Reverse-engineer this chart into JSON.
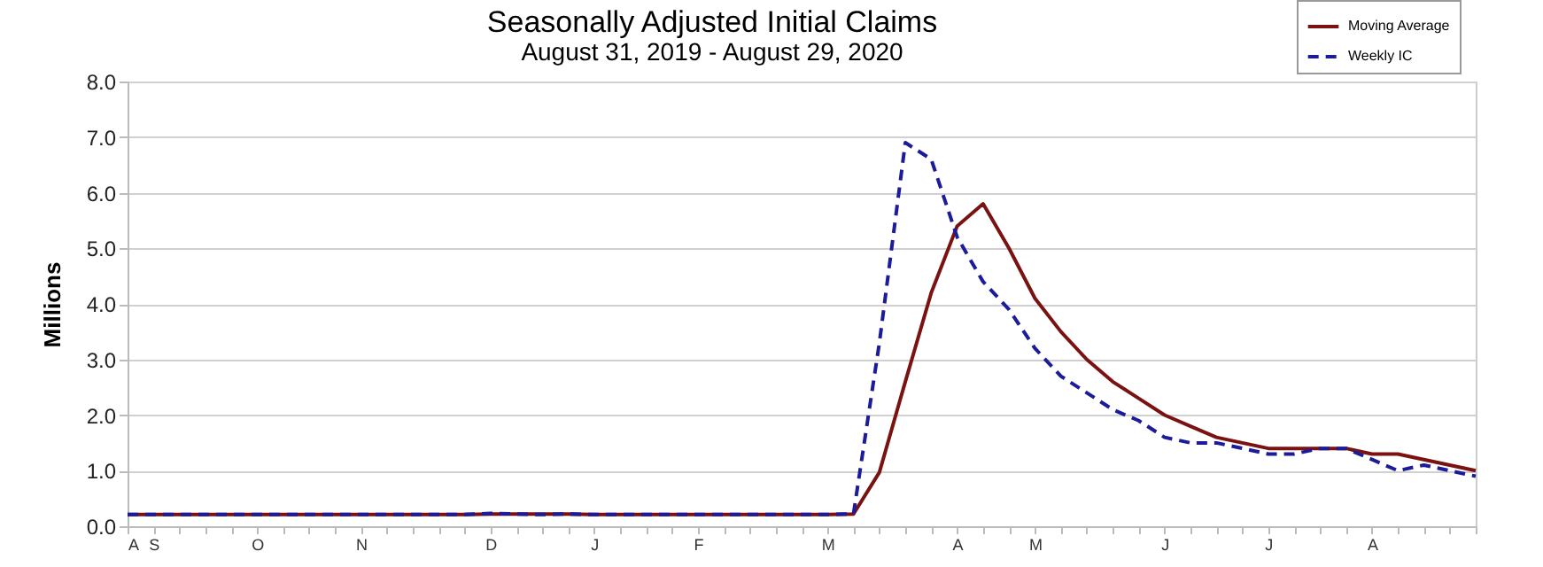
{
  "chart_data": {
    "type": "line",
    "title": "Seasonally Adjusted Initial Claims",
    "subtitle": "August 31, 2019 - August 29, 2020",
    "ylabel": "Millions",
    "categories": [
      "A",
      "S",
      null,
      null,
      null,
      "O",
      null,
      null,
      null,
      "N",
      null,
      null,
      null,
      null,
      "D",
      null,
      null,
      null,
      "J",
      null,
      null,
      null,
      "F",
      null,
      null,
      null,
      null,
      "M",
      null,
      null,
      null,
      null,
      "A",
      null,
      null,
      "M",
      null,
      null,
      null,
      null,
      "J",
      null,
      null,
      null,
      "J",
      null,
      null,
      null,
      "A",
      null,
      null,
      null,
      null
    ],
    "series": [
      {
        "name": "Moving Average",
        "color": "#7a1212",
        "line_style": "solid",
        "values": [
          0.21,
          0.21,
          0.21,
          0.21,
          0.21,
          0.21,
          0.21,
          0.21,
          0.21,
          0.21,
          0.21,
          0.21,
          0.21,
          0.21,
          0.22,
          0.22,
          0.22,
          0.22,
          0.21,
          0.21,
          0.21,
          0.21,
          0.21,
          0.21,
          0.21,
          0.21,
          0.21,
          0.21,
          0.22,
          0.97,
          2.6,
          4.2,
          5.4,
          5.8,
          5.0,
          4.1,
          3.5,
          3.0,
          2.6,
          2.3,
          2.0,
          1.8,
          1.6,
          1.5,
          1.4,
          1.4,
          1.4,
          1.4,
          1.3,
          1.3,
          1.2,
          1.1,
          1.0
        ]
      },
      {
        "name": "Weekly IC",
        "color": "#1c1c9a",
        "line_style": "dashed",
        "values": [
          0.21,
          0.21,
          0.21,
          0.21,
          0.21,
          0.21,
          0.21,
          0.21,
          0.21,
          0.21,
          0.21,
          0.21,
          0.21,
          0.21,
          0.23,
          0.22,
          0.21,
          0.22,
          0.21,
          0.21,
          0.21,
          0.21,
          0.21,
          0.21,
          0.21,
          0.21,
          0.21,
          0.21,
          0.22,
          3.3,
          6.9,
          6.6,
          5.2,
          4.4,
          3.9,
          3.2,
          2.7,
          2.4,
          2.1,
          1.9,
          1.6,
          1.5,
          1.5,
          1.4,
          1.3,
          1.3,
          1.4,
          1.4,
          1.2,
          1.0,
          1.1,
          1.0,
          0.9
        ]
      }
    ],
    "ylim": [
      0,
      8
    ],
    "yticks": [
      {
        "value": 0,
        "label": "0.0"
      },
      {
        "value": 1,
        "label": "1.0"
      },
      {
        "value": 2,
        "label": "2.0"
      },
      {
        "value": 3,
        "label": "3.0"
      },
      {
        "value": 4,
        "label": "4.0"
      },
      {
        "value": 5,
        "label": "5.0"
      },
      {
        "value": 6,
        "label": "6.0"
      },
      {
        "value": 7,
        "label": "7.0"
      },
      {
        "value": 8,
        "label": "8.0"
      }
    ],
    "grid": "y",
    "legend": "top right",
    "marker": "none"
  }
}
